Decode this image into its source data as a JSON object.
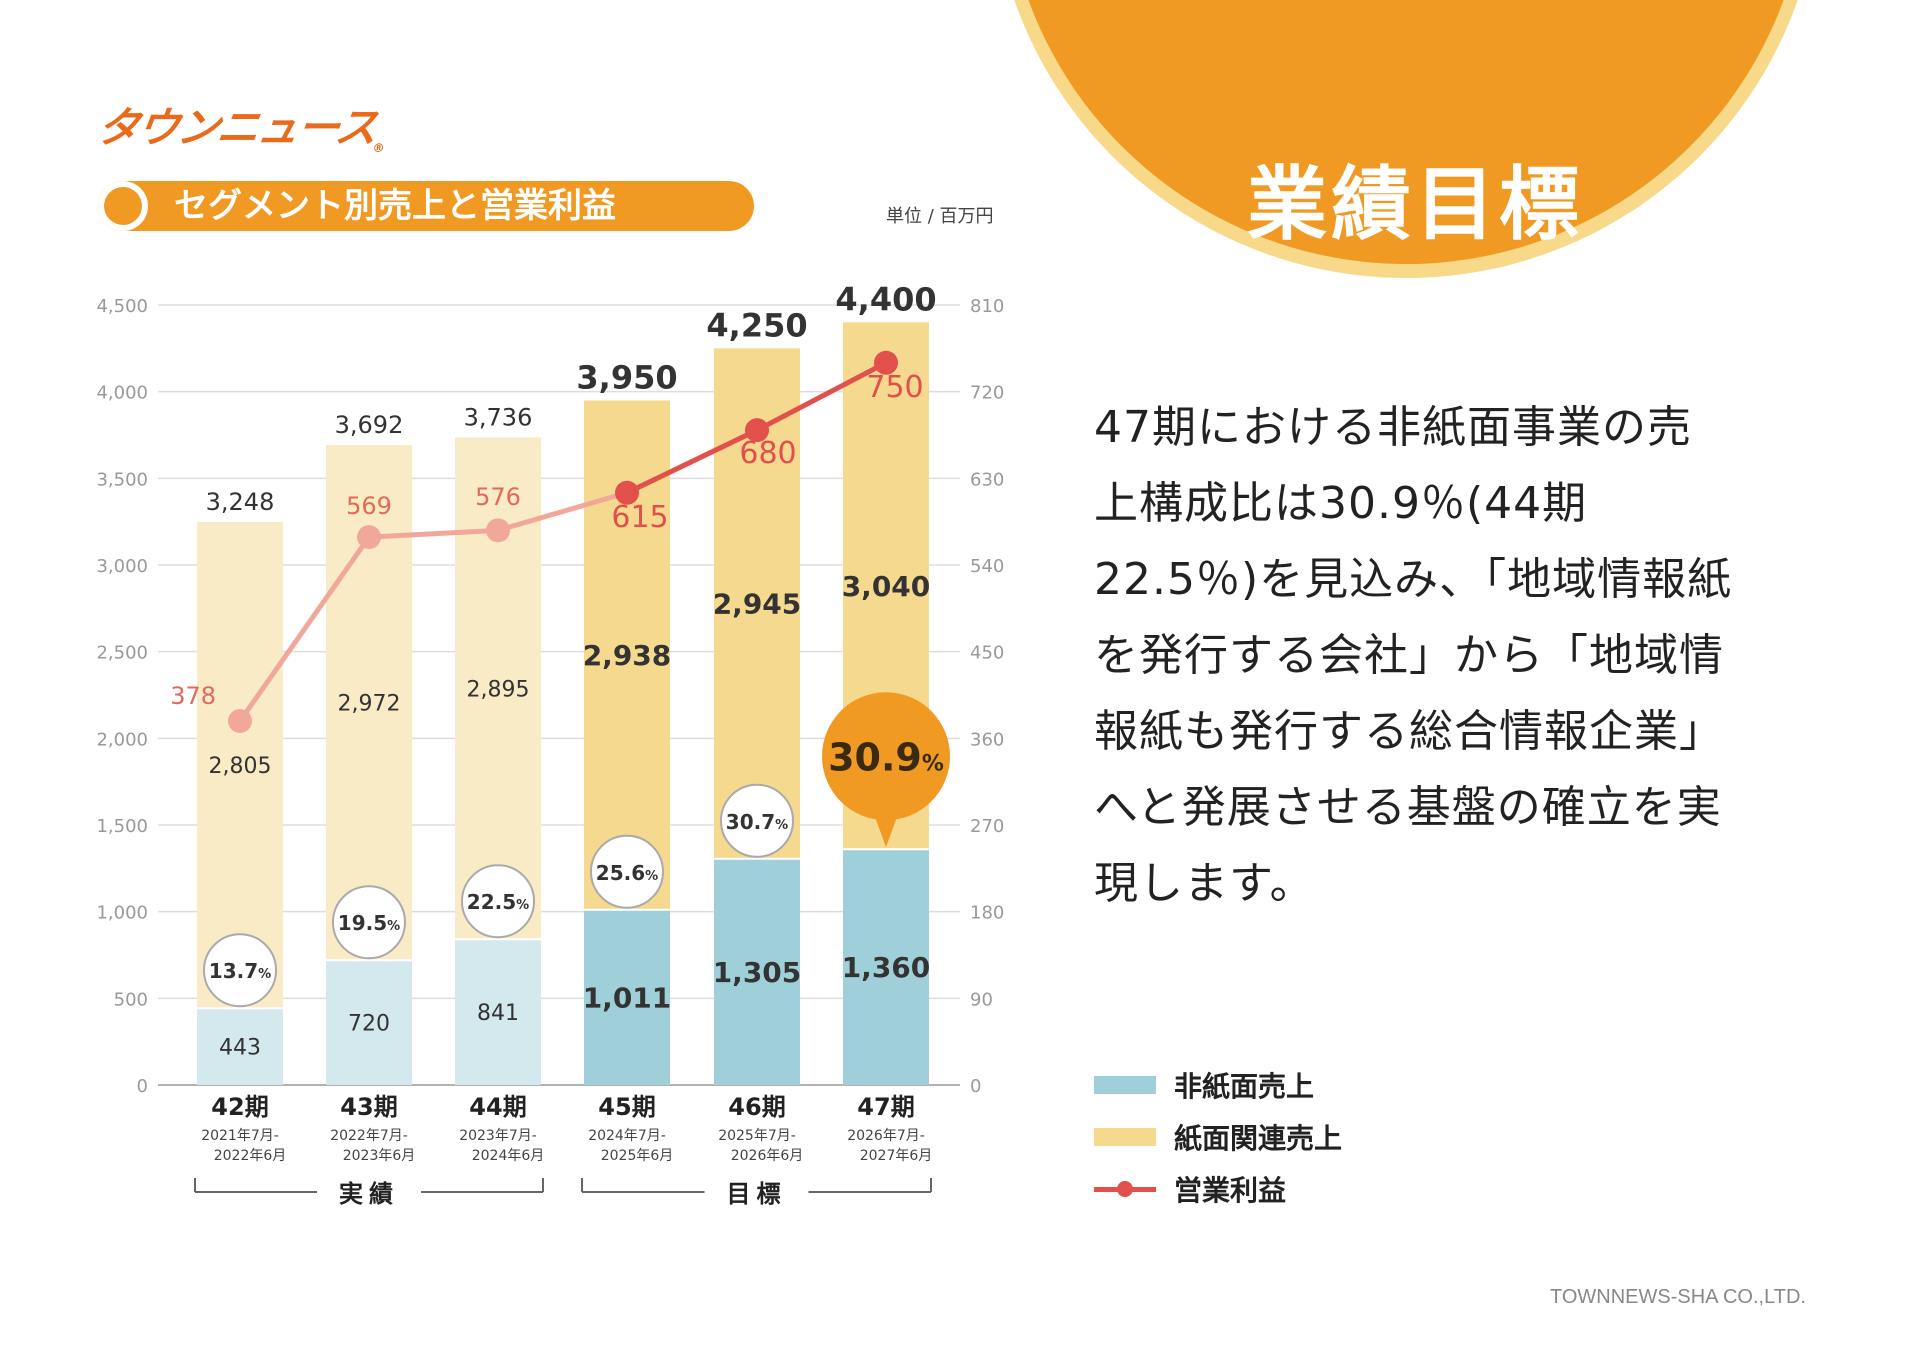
{
  "header": {
    "logo_text": "タウンニュース",
    "logo_reg": "®",
    "section_title": "セグメント別売上と営業利益",
    "unit": "単位 / 百万円",
    "main_title": "業績目標"
  },
  "body_text": "47期における非紙面事業の売上構成比は30.9％(44期22.5％)を見込み、「地域情報紙を発行する会社」から「地域情報紙も発行する総合情報企業」へと発展させる基盤の確立を実現します。",
  "legend": {
    "non_paper": "非紙面売上",
    "paper": "紙面関連売上",
    "profit": "営業利益"
  },
  "copyright": "TOWNNEWS-SHA CO.,LTD.",
  "colors": {
    "orange": "#f19a23",
    "orange_ring": "#f8d98a",
    "nonpaper_light": "#d3e9ee",
    "nonpaper_dark": "#9fd0da",
    "paper_light": "#f9ebc6",
    "paper_dark": "#f5d98f",
    "profit_light": "#f2a79b",
    "profit_dark": "#e2504c"
  },
  "chart_data": {
    "type": "bar",
    "stacked": true,
    "title": "セグメント別売上と営業利益",
    "ylim": [
      0,
      4500
    ],
    "yticks": [
      "0",
      "500",
      "1,000",
      "1,500",
      "2,000",
      "2,500",
      "3,000",
      "3,500",
      "4,000",
      "4,500"
    ],
    "y2lim": [
      0,
      810
    ],
    "y2ticks": [
      "0",
      "90",
      "180",
      "270",
      "360",
      "450",
      "540",
      "630",
      "720",
      "810"
    ],
    "categories": [
      "42期",
      "43期",
      "44期",
      "45期",
      "46期",
      "47期"
    ],
    "periods": [
      [
        "2021年7月-",
        "2022年6月"
      ],
      [
        "2022年7月-",
        "2023年6月"
      ],
      [
        "2023年7月-",
        "2024年6月"
      ],
      [
        "2024年7月-",
        "2025年6月"
      ],
      [
        "2025年7月-",
        "2026年6月"
      ],
      [
        "2026年7月-",
        "2027年6月"
      ]
    ],
    "groups": [
      {
        "label": "実績",
        "from": 0,
        "to": 2
      },
      {
        "label": "目標",
        "from": 3,
        "to": 5
      }
    ],
    "target_from": 3,
    "series": [
      {
        "name": "非紙面売上",
        "values": [
          443,
          720,
          841,
          1011,
          1305,
          1360
        ],
        "labels": [
          "443",
          "720",
          "841",
          "1,011",
          "1,305",
          "1,360"
        ]
      },
      {
        "name": "紙面関連売上",
        "values": [
          2805,
          2972,
          2895,
          2938,
          2945,
          3040
        ],
        "labels": [
          "2,805",
          "2,972",
          "2,895",
          "2,938",
          "2,945",
          "3,040"
        ]
      },
      {
        "name": "営業利益",
        "axis": "right",
        "type": "line",
        "values": [
          378,
          569,
          576,
          615,
          680,
          750
        ],
        "labels": [
          "378",
          "569",
          "576",
          "615",
          "680",
          "750"
        ]
      }
    ],
    "totals": [
      3248,
      3692,
      3736,
      3950,
      4250,
      4400
    ],
    "total_labels": [
      "3,248",
      "3,692",
      "3,736",
      "3,950",
      "4,250",
      "4,400"
    ],
    "ratios": [
      "13.7",
      "19.5",
      "22.5",
      "25.6",
      "30.7",
      "30.9"
    ],
    "ratio_unit": "%",
    "highlight_index": 5
  }
}
